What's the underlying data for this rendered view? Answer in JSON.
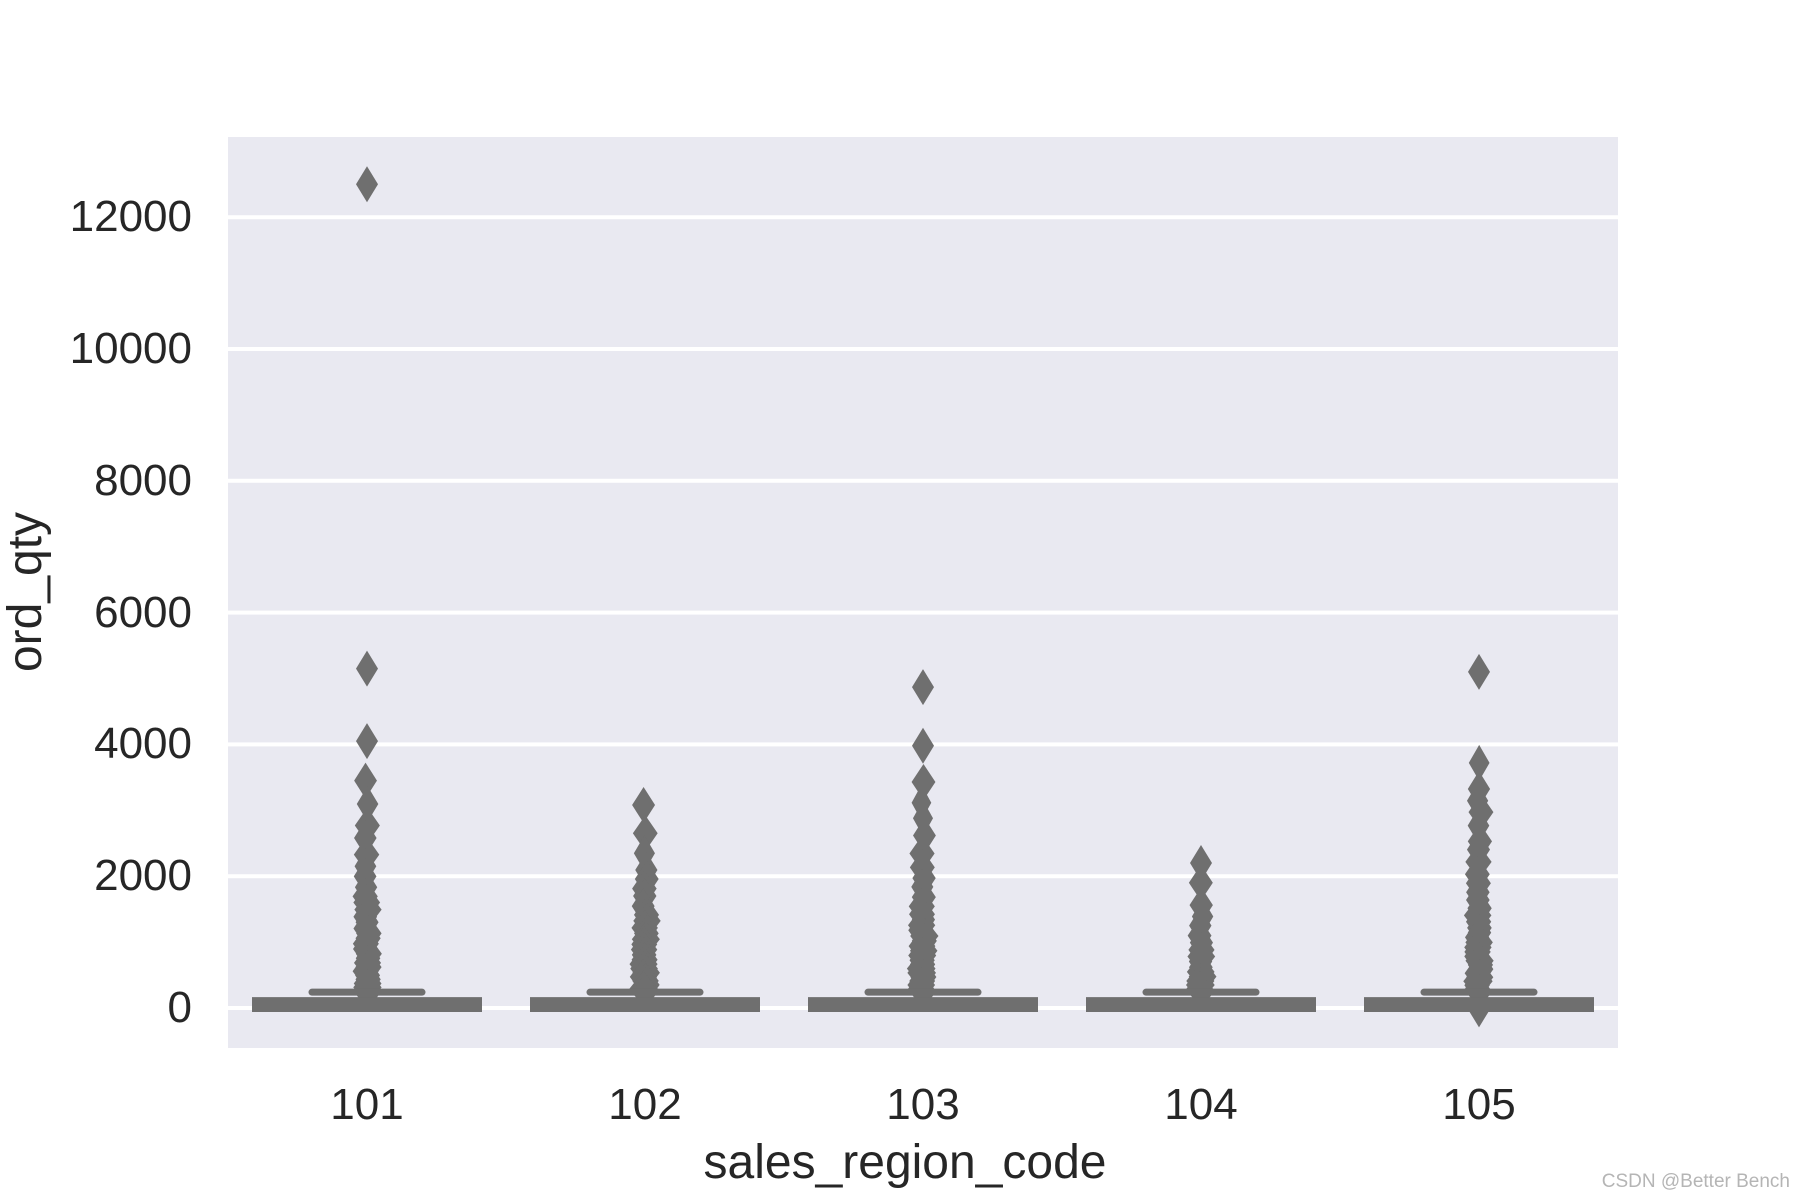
{
  "watermark": "CSDN @Better Bench",
  "colors": {
    "plot_bg": "#e9e9f1",
    "gridline": "#ffffff",
    "marks": "#6f6f6f",
    "text": "#262626",
    "watermark": "#b5b5b5"
  },
  "chart_data": {
    "type": "boxplot",
    "title": "",
    "xlabel": "sales_region_code",
    "ylabel": "ord_qty",
    "categories": [
      "101",
      "102",
      "103",
      "104",
      "105"
    ],
    "y_ticks": [
      {
        "value": 0,
        "label": "0"
      },
      {
        "value": 2000,
        "label": "2000"
      },
      {
        "value": 4000,
        "label": "4000"
      },
      {
        "value": 6000,
        "label": "6000"
      },
      {
        "value": 8000,
        "label": "8000"
      },
      {
        "value": 10000,
        "label": "10000"
      },
      {
        "value": 12000,
        "label": "12000"
      }
    ],
    "ylim": [
      -607,
      13217
    ],
    "grid": true,
    "legend": false,
    "marker": "thin-diamond",
    "series": [
      {
        "category": "101",
        "box": {
          "q1": 0,
          "median": 30,
          "q3": 165,
          "whisker_low": 0,
          "whisker_high": 240
        },
        "outliers": [
          12500,
          5150,
          4050
        ],
        "low_outliers": [],
        "outlier_stack": {
          "min": 250,
          "max": 3450
        }
      },
      {
        "category": "102",
        "box": {
          "q1": 0,
          "median": 30,
          "q3": 165,
          "whisker_low": 0,
          "whisker_high": 240
        },
        "outliers": [],
        "low_outliers": [],
        "outlier_stack": {
          "min": 250,
          "max": 3080
        }
      },
      {
        "category": "103",
        "box": {
          "q1": 0,
          "median": 30,
          "q3": 165,
          "whisker_low": 0,
          "whisker_high": 240
        },
        "outliers": [
          4870,
          3980
        ],
        "low_outliers": [],
        "outlier_stack": {
          "min": 250,
          "max": 3430
        }
      },
      {
        "category": "104",
        "box": {
          "q1": 0,
          "median": 30,
          "q3": 165,
          "whisker_low": 0,
          "whisker_high": 240
        },
        "outliers": [
          2200
        ],
        "low_outliers": [],
        "outlier_stack": {
          "min": 250,
          "max": 1900
        }
      },
      {
        "category": "105",
        "box": {
          "q1": 0,
          "median": 30,
          "q3": 165,
          "whisker_low": 0,
          "whisker_high": 240
        },
        "outliers": [
          5100
        ],
        "low_outliers": [
          -20
        ],
        "outlier_stack": {
          "min": 250,
          "max": 3720
        }
      }
    ]
  }
}
